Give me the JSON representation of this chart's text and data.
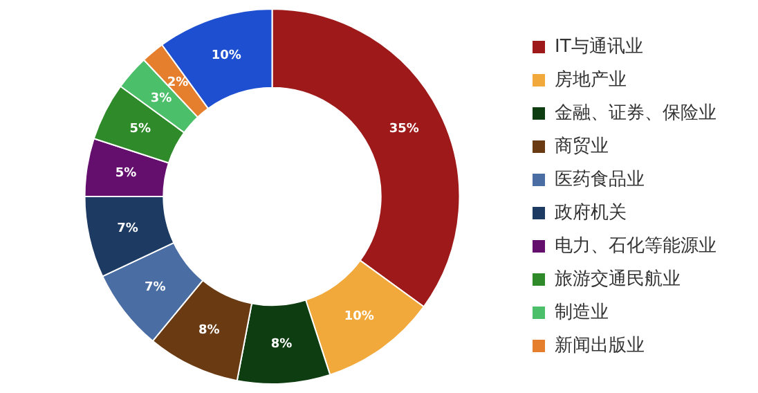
{
  "chart_data": {
    "type": "donut",
    "categories": [
      "IT与通讯业",
      "房地产业",
      "金融、证券、保险业",
      "商贸业",
      "医药食品业",
      "政府机关",
      "电力、石化等能源业",
      "旅游交通民航业",
      "制造业",
      "新闻出版业",
      null
    ],
    "values": [
      35,
      10,
      8,
      8,
      7,
      7,
      5,
      5,
      3,
      2,
      10
    ],
    "value_labels": [
      "35%",
      "10%",
      "8%",
      "8%",
      "7%",
      "7%",
      "5%",
      "5%",
      "3%",
      "2%",
      "10%"
    ],
    "colors": [
      "#9e1a1a",
      "#f2a93b",
      "#0f3d12",
      "#6a3a12",
      "#4a6ea3",
      "#1c3a62",
      "#640f6e",
      "#2f8a2a",
      "#4cbf6a",
      "#e57f2e",
      "#1e4fd1"
    ],
    "legend": "right"
  }
}
